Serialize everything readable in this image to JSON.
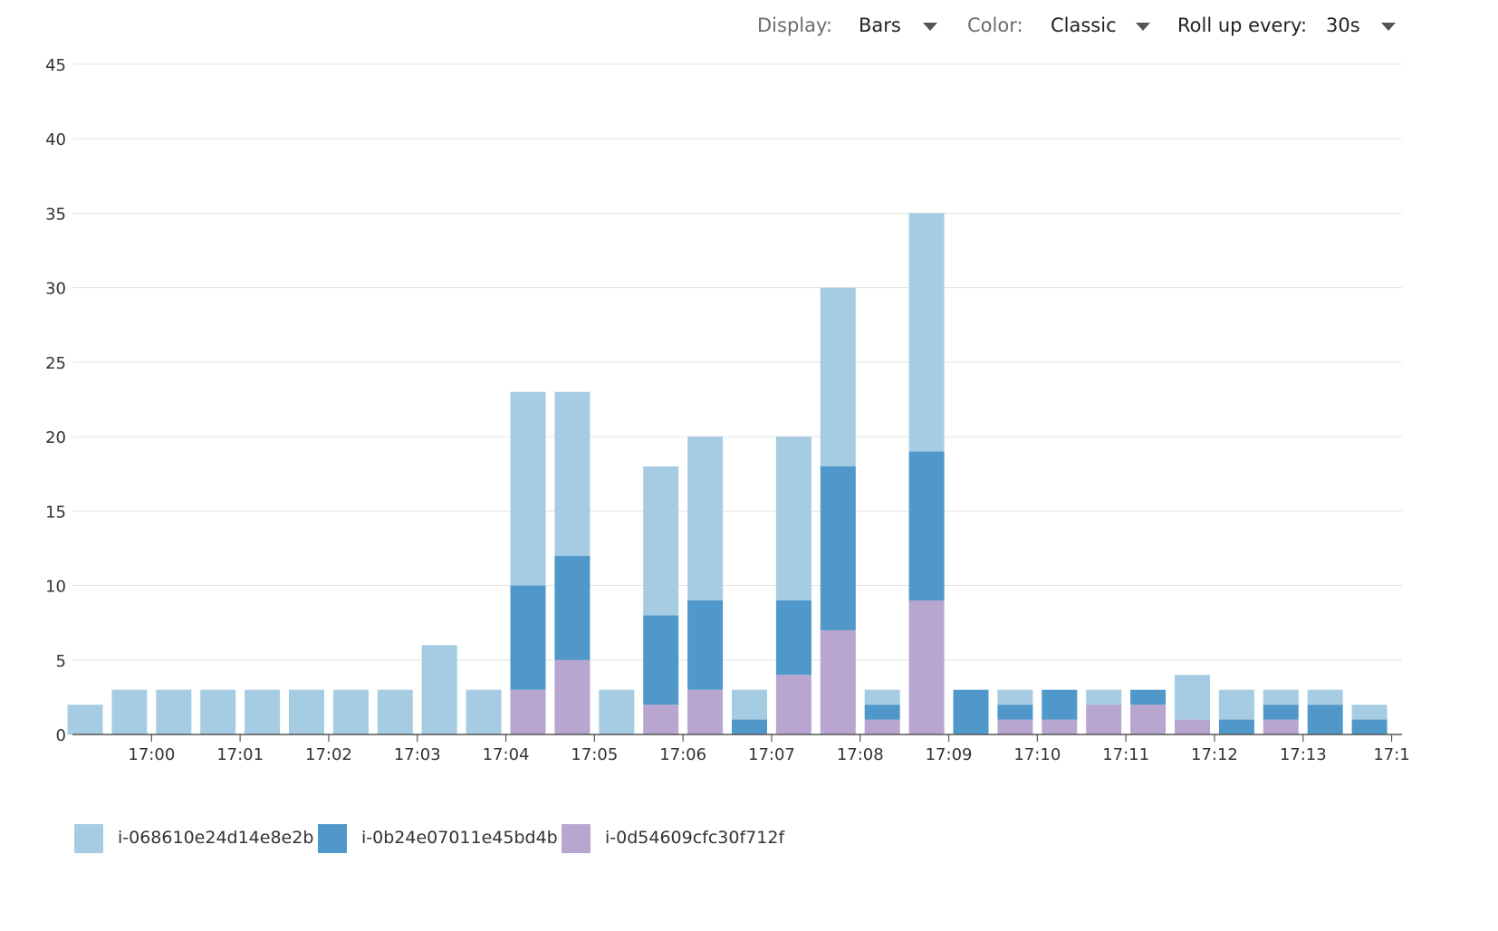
{
  "controls": {
    "display_label": "Display:",
    "display_value": "Bars",
    "color_label": "Color:",
    "color_value": "Classic",
    "rollup_label": "Roll up every:",
    "rollup_value": "30s"
  },
  "colors": {
    "series_0": "#a6cce3",
    "series_1": "#4f98c9",
    "series_2": "#b8a6d0",
    "grid": "#e4e4e4",
    "axis": "#555555",
    "tick_text": "#333333"
  },
  "chart_data": {
    "type": "bar",
    "stacked": true,
    "ylim": [
      0,
      45
    ],
    "yticks": [
      0,
      5,
      10,
      15,
      20,
      25,
      30,
      35,
      40,
      45
    ],
    "xticks": [
      "17:00",
      "17:01",
      "17:02",
      "17:03",
      "17:04",
      "17:05",
      "17:06",
      "17:07",
      "17:08",
      "17:09",
      "17:10",
      "17:11",
      "17:12",
      "17:13",
      "17:1"
    ],
    "grid": true,
    "legend_placement": "bottom-left",
    "bucket": "30s",
    "series": [
      {
        "name": "i-068610e24d14e8e2b",
        "values": [
          2,
          3,
          3,
          3,
          3,
          3,
          3,
          3,
          6,
          3,
          13,
          11,
          3,
          10,
          11,
          2,
          11,
          12,
          1,
          16,
          0,
          1,
          0,
          1,
          0,
          3,
          2,
          1,
          1,
          1
        ]
      },
      {
        "name": "i-0b24e07011e45bd4b",
        "values": [
          0,
          0,
          0,
          0,
          0,
          0,
          0,
          0,
          0,
          0,
          7,
          7,
          0,
          6,
          6,
          1,
          5,
          11,
          1,
          10,
          3,
          1,
          2,
          0,
          1,
          0,
          1,
          1,
          2,
          1
        ]
      },
      {
        "name": "i-0d54609cfc30f712f",
        "values": [
          0,
          0,
          0,
          0,
          0,
          0,
          0,
          0,
          0,
          0,
          3,
          5,
          0,
          2,
          3,
          0,
          4,
          7,
          1,
          9,
          0,
          1,
          1,
          2,
          2,
          1,
          0,
          1,
          0,
          0
        ]
      }
    ]
  }
}
